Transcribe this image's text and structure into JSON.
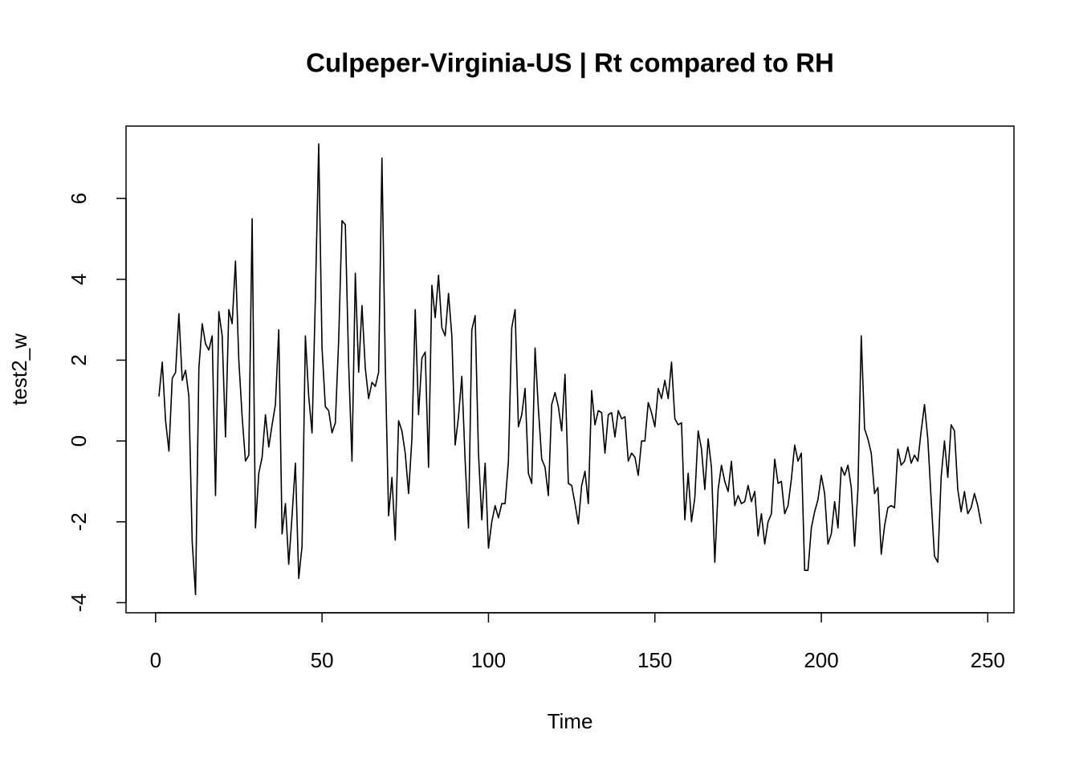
{
  "chart_data": {
    "type": "line",
    "title": "Culpeper-Virginia-US | Rt compared to RH",
    "xlabel": "Time",
    "ylabel": "test2_w",
    "color": "#000000",
    "x": [
      1,
      2,
      3,
      4,
      5,
      6,
      7,
      8,
      9,
      10,
      11,
      12,
      13,
      14,
      15,
      16,
      17,
      18,
      19,
      20,
      21,
      22,
      23,
      24,
      25,
      26,
      27,
      28,
      29,
      30,
      31,
      32,
      33,
      34,
      35,
      36,
      37,
      38,
      39,
      40,
      41,
      42,
      43,
      44,
      45,
      46,
      47,
      48,
      49,
      50,
      51,
      52,
      53,
      54,
      55,
      56,
      57,
      58,
      59,
      60,
      61,
      62,
      63,
      64,
      65,
      66,
      67,
      68,
      69,
      70,
      71,
      72,
      73,
      74,
      75,
      76,
      77,
      78,
      79,
      80,
      81,
      82,
      83,
      84,
      85,
      86,
      87,
      88,
      89,
      90,
      91,
      92,
      93,
      94,
      95,
      96,
      97,
      98,
      99,
      100,
      101,
      102,
      103,
      104,
      105,
      106,
      107,
      108,
      109,
      110,
      111,
      112,
      113,
      114,
      115,
      116,
      117,
      118,
      119,
      120,
      121,
      122,
      123,
      124,
      125,
      126,
      127,
      128,
      129,
      130,
      131,
      132,
      133,
      134,
      135,
      136,
      137,
      138,
      139,
      140,
      141,
      142,
      143,
      144,
      145,
      146,
      147,
      148,
      149,
      150,
      151,
      152,
      153,
      154,
      155,
      156,
      157,
      158,
      159,
      160,
      161,
      162,
      163,
      164,
      165,
      166,
      167,
      168,
      169,
      170,
      171,
      172,
      173,
      174,
      175,
      176,
      177,
      178,
      179,
      180,
      181,
      182,
      183,
      184,
      185,
      186,
      187,
      188,
      189,
      190,
      191,
      192,
      193,
      194,
      195,
      196,
      197,
      198,
      199,
      200,
      201,
      202,
      203,
      204,
      205,
      206,
      207,
      208,
      209,
      210,
      211,
      212,
      213,
      214,
      215,
      216,
      217,
      218,
      219,
      220,
      221,
      222,
      223,
      224,
      225,
      226,
      227,
      228,
      229,
      230,
      231,
      232,
      233,
      234,
      235,
      236,
      237,
      238,
      239,
      240,
      241,
      242,
      243,
      244,
      245,
      246,
      247,
      248
    ],
    "values": [
      1.1,
      1.95,
      0.5,
      -0.25,
      1.55,
      1.7,
      3.15,
      1.5,
      1.75,
      1.1,
      -2.5,
      -3.8,
      1.8,
      2.9,
      2.4,
      2.25,
      2.6,
      -1.35,
      3.2,
      2.6,
      0.1,
      3.25,
      2.9,
      4.45,
      2.0,
      0.6,
      -0.5,
      -0.35,
      5.5,
      -2.15,
      -0.8,
      -0.4,
      0.65,
      -0.15,
      0.4,
      0.9,
      2.75,
      -2.3,
      -1.55,
      -3.05,
      -1.85,
      -0.55,
      -3.4,
      -2.6,
      2.6,
      1.1,
      0.2,
      3.55,
      7.35,
      2.3,
      0.85,
      0.75,
      0.2,
      0.45,
      2.5,
      5.45,
      5.35,
      1.9,
      -0.5,
      4.15,
      1.7,
      3.35,
      1.8,
      1.05,
      1.45,
      1.35,
      1.7,
      7.0,
      1.9,
      -1.85,
      -0.9,
      -2.45,
      0.5,
      0.25,
      -0.3,
      -1.3,
      0.05,
      3.25,
      0.65,
      2.05,
      2.2,
      -0.65,
      3.85,
      3.05,
      4.1,
      2.8,
      2.6,
      3.65,
      2.6,
      -0.1,
      0.6,
      1.6,
      -0.5,
      -2.15,
      2.75,
      3.1,
      -0.3,
      -1.95,
      -0.55,
      -2.65,
      -2.0,
      -1.6,
      -1.9,
      -1.55,
      -1.55,
      -0.5,
      2.8,
      3.25,
      0.35,
      0.65,
      1.3,
      -0.8,
      -1.05,
      2.3,
      0.8,
      -0.45,
      -0.65,
      -1.35,
      0.9,
      1.2,
      0.85,
      0.25,
      1.65,
      -1.05,
      -1.1,
      -1.55,
      -2.05,
      -1.1,
      -0.75,
      -1.55,
      1.25,
      0.4,
      0.75,
      0.7,
      -0.3,
      0.65,
      0.7,
      0.1,
      0.75,
      0.55,
      0.6,
      -0.5,
      -0.3,
      -0.4,
      -0.85,
      0.0,
      0.0,
      0.95,
      0.7,
      0.35,
      1.3,
      1.05,
      1.5,
      1.05,
      1.95,
      0.55,
      0.4,
      0.45,
      -1.95,
      -0.8,
      -2.0,
      -1.4,
      0.25,
      -0.2,
      -1.2,
      0.05,
      -0.65,
      -3.0,
      -1.2,
      -0.6,
      -1.0,
      -1.25,
      -0.5,
      -1.6,
      -1.35,
      -1.55,
      -1.5,
      -1.1,
      -1.5,
      -1.25,
      -2.35,
      -1.8,
      -2.55,
      -2.0,
      -1.8,
      -0.45,
      -1.05,
      -1.0,
      -1.8,
      -1.6,
      -0.95,
      -0.1,
      -0.5,
      -0.3,
      -3.2,
      -3.2,
      -2.15,
      -1.75,
      -1.45,
      -0.85,
      -1.3,
      -2.55,
      -2.3,
      -1.5,
      -2.15,
      -0.65,
      -0.85,
      -0.6,
      -1.15,
      -2.6,
      -1.2,
      2.6,
      0.3,
      0.05,
      -0.3,
      -1.3,
      -1.15,
      -2.8,
      -2.1,
      -1.65,
      -1.6,
      -1.65,
      -0.2,
      -0.6,
      -0.5,
      -0.15,
      -0.55,
      -0.35,
      -0.5,
      0.25,
      0.9,
      0.05,
      -1.45,
      -2.85,
      -3.0,
      -0.9,
      0.0,
      -0.9,
      0.4,
      0.25,
      -1.2,
      -1.75,
      -1.25,
      -1.8,
      -1.65,
      -1.3,
      -1.6,
      -2.05
    ],
    "xlim": [
      -8.88,
      257.88
    ],
    "ylim": [
      -4.25,
      7.79
    ],
    "xticks": [
      0,
      50,
      100,
      150,
      200,
      250
    ],
    "yticks": [
      -4,
      -2,
      0,
      2,
      4,
      6
    ]
  }
}
